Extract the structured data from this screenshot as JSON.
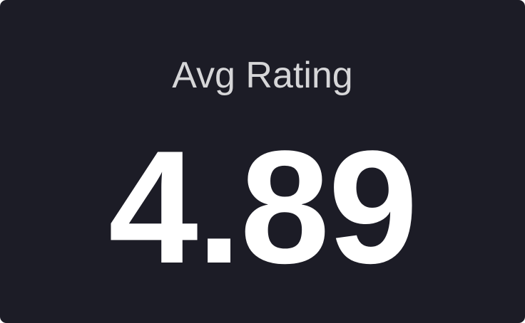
{
  "card": {
    "title": "Avg Rating",
    "value": "4.89",
    "background_color": "#1c1c26"
  }
}
